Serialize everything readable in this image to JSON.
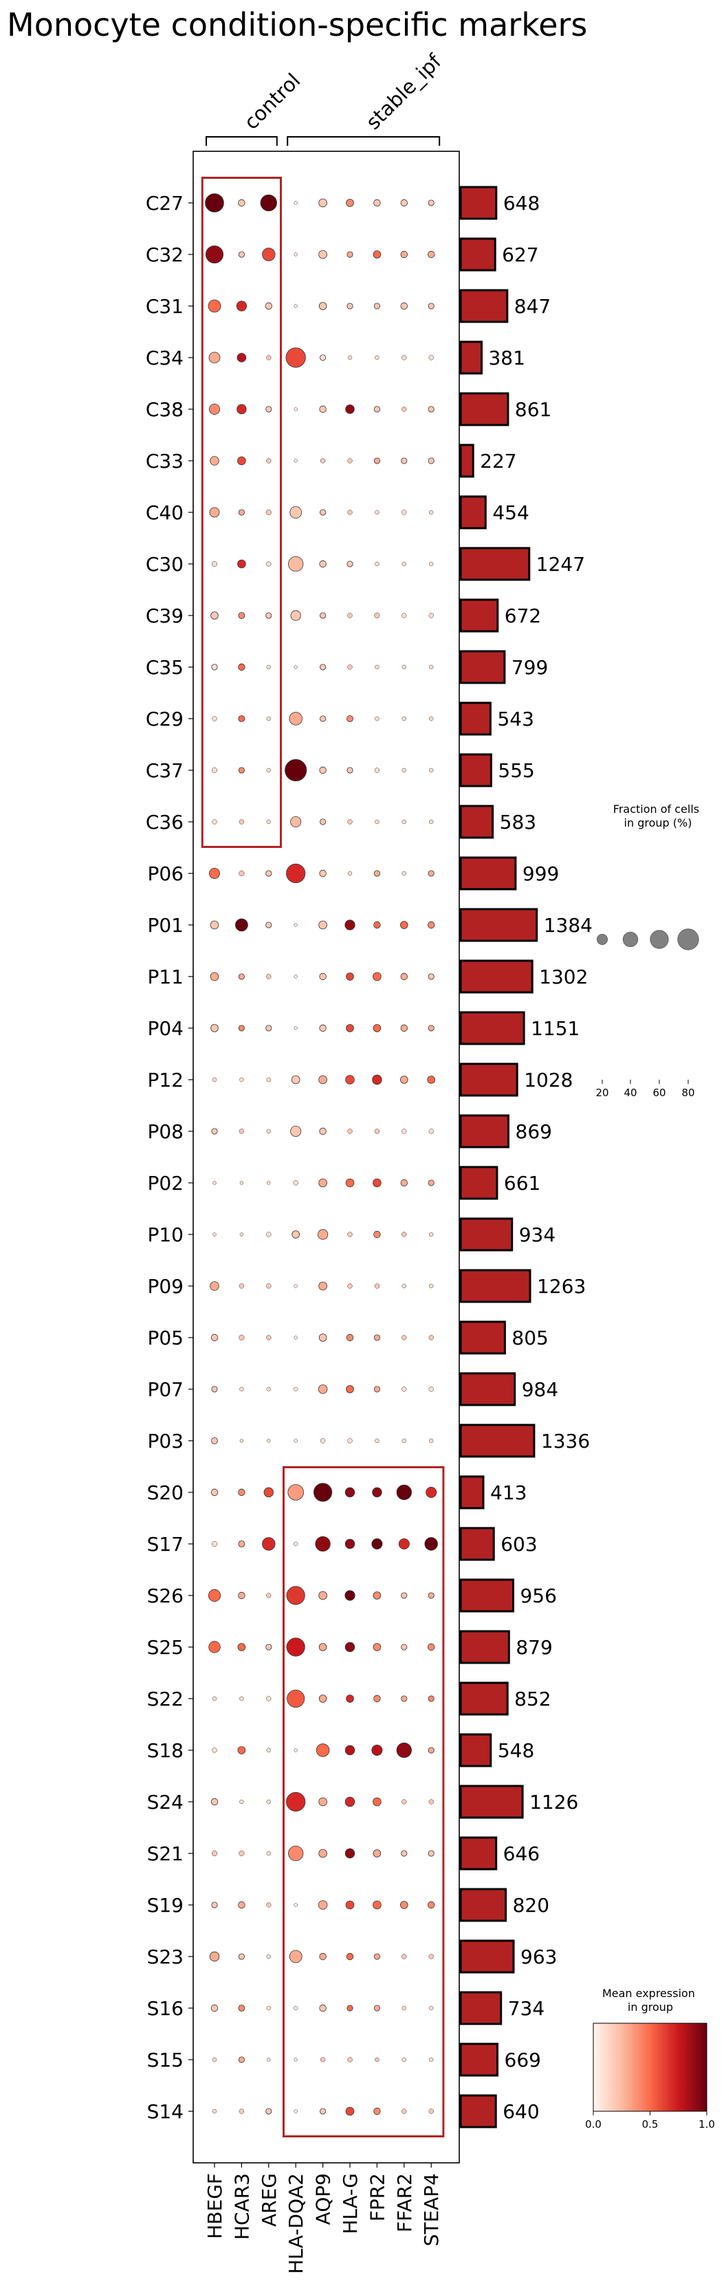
{
  "chart_data": {
    "type": "dotplot",
    "title": "Monocyte condition-specific markers",
    "var_groups": [
      {
        "label": "control",
        "genes": [
          "HBEGF",
          "HCAR3",
          "AREG"
        ]
      },
      {
        "label": "stable_ipf",
        "genes": [
          "HLA-DQA2",
          "AQP9",
          "HLA-G",
          "FPR2",
          "FFAR2",
          "STEAP4"
        ]
      }
    ],
    "genes": [
      "HBEGF",
      "HCAR3",
      "AREG",
      "HLA-DQA2",
      "AQP9",
      "HLA-G",
      "FPR2",
      "FFAR2",
      "STEAP4"
    ],
    "groups": [
      "C27",
      "C32",
      "C31",
      "C34",
      "C38",
      "C33",
      "C40",
      "C30",
      "C39",
      "C35",
      "C29",
      "C37",
      "C36",
      "P06",
      "P01",
      "P11",
      "P04",
      "P12",
      "P08",
      "P02",
      "P10",
      "P09",
      "P05",
      "P07",
      "P03",
      "S20",
      "S17",
      "S26",
      "S25",
      "S22",
      "S18",
      "S24",
      "S21",
      "S19",
      "S23",
      "S16",
      "S15",
      "S14"
    ],
    "cell_counts": [
      648,
      627,
      847,
      381,
      861,
      227,
      454,
      1247,
      672,
      799,
      543,
      555,
      583,
      999,
      1384,
      1302,
      1151,
      1028,
      869,
      661,
      934,
      1263,
      805,
      984,
      1336,
      413,
      603,
      956,
      879,
      852,
      548,
      1126,
      646,
      820,
      963,
      734,
      669,
      640
    ],
    "fraction_pct": [
      [
        62,
        8,
        48,
        2,
        12,
        10,
        8,
        8,
        6
      ],
      [
        55,
        6,
        30,
        2,
        12,
        6,
        10,
        8,
        8
      ],
      [
        28,
        18,
        8,
        2,
        10,
        6,
        6,
        8,
        6
      ],
      [
        22,
        14,
        4,
        70,
        6,
        3,
        3,
        4,
        4
      ],
      [
        20,
        16,
        6,
        2,
        8,
        14,
        6,
        4,
        6
      ],
      [
        14,
        12,
        4,
        2,
        4,
        4,
        6,
        6,
        6
      ],
      [
        17,
        6,
        5,
        25,
        6,
        4,
        3,
        4,
        3
      ],
      [
        5,
        12,
        4,
        40,
        8,
        6,
        3,
        3,
        3
      ],
      [
        10,
        7,
        6,
        18,
        6,
        4,
        5,
        4,
        4
      ],
      [
        6,
        8,
        3,
        2,
        6,
        4,
        3,
        3,
        3
      ],
      [
        4,
        7,
        3,
        30,
        6,
        7,
        3,
        3,
        3
      ],
      [
        5,
        6,
        3,
        85,
        8,
        6,
        4,
        3,
        3
      ],
      [
        4,
        4,
        3,
        20,
        6,
        4,
        3,
        3,
        3
      ],
      [
        20,
        5,
        6,
        65,
        8,
        3,
        6,
        3,
        6
      ],
      [
        12,
        28,
        6,
        2,
        12,
        18,
        8,
        10,
        8
      ],
      [
        12,
        6,
        4,
        2,
        8,
        10,
        12,
        8,
        6
      ],
      [
        10,
        6,
        6,
        2,
        8,
        10,
        10,
        8,
        6
      ],
      [
        3,
        3,
        3,
        12,
        12,
        14,
        16,
        10,
        10
      ],
      [
        6,
        4,
        3,
        20,
        8,
        4,
        4,
        4,
        4
      ],
      [
        2,
        2,
        2,
        4,
        12,
        12,
        12,
        8,
        6
      ],
      [
        2,
        2,
        4,
        10,
        18,
        4,
        8,
        4,
        3
      ],
      [
        14,
        4,
        4,
        2,
        12,
        4,
        4,
        3,
        3
      ],
      [
        8,
        5,
        4,
        2,
        10,
        8,
        6,
        4,
        4
      ],
      [
        6,
        3,
        3,
        3,
        14,
        10,
        6,
        4,
        4
      ],
      [
        7,
        2,
        2,
        2,
        4,
        4,
        3,
        3,
        3
      ],
      [
        8,
        8,
        16,
        45,
        60,
        16,
        16,
        40,
        20
      ],
      [
        5,
        7,
        30,
        3,
        40,
        16,
        20,
        20,
        30
      ],
      [
        26,
        8,
        4,
        60,
        12,
        18,
        10,
        6,
        6
      ],
      [
        24,
        10,
        6,
        60,
        10,
        16,
        10,
        6,
        8
      ],
      [
        3,
        3,
        4,
        55,
        10,
        10,
        8,
        6,
        6
      ],
      [
        4,
        10,
        3,
        2,
        30,
        16,
        20,
        40,
        6
      ],
      [
        8,
        3,
        3,
        65,
        12,
        16,
        12,
        4,
        4
      ],
      [
        5,
        5,
        3,
        40,
        12,
        16,
        10,
        6,
        6
      ],
      [
        6,
        8,
        4,
        2,
        14,
        12,
        12,
        10,
        8
      ],
      [
        16,
        6,
        3,
        28,
        8,
        8,
        6,
        4,
        4
      ],
      [
        8,
        7,
        3,
        3,
        8,
        6,
        6,
        3,
        3
      ],
      [
        3,
        6,
        2,
        2,
        4,
        4,
        3,
        3,
        3
      ],
      [
        3,
        4,
        6,
        2,
        6,
        12,
        8,
        4,
        4
      ]
    ],
    "mean_expr": [
      [
        1.0,
        0.2,
        1.0,
        0.05,
        0.2,
        0.4,
        0.2,
        0.2,
        0.2
      ],
      [
        0.9,
        0.2,
        0.6,
        0.05,
        0.2,
        0.3,
        0.5,
        0.3,
        0.3
      ],
      [
        0.5,
        0.7,
        0.2,
        0.05,
        0.2,
        0.2,
        0.2,
        0.2,
        0.2
      ],
      [
        0.3,
        0.8,
        0.2,
        0.6,
        0.1,
        0.1,
        0.1,
        0.1,
        0.1
      ],
      [
        0.4,
        0.7,
        0.2,
        0.05,
        0.2,
        0.9,
        0.2,
        0.2,
        0.2
      ],
      [
        0.3,
        0.6,
        0.2,
        0.05,
        0.2,
        0.2,
        0.3,
        0.2,
        0.2
      ],
      [
        0.3,
        0.3,
        0.2,
        0.2,
        0.2,
        0.2,
        0.1,
        0.1,
        0.1
      ],
      [
        0.1,
        0.7,
        0.1,
        0.25,
        0.2,
        0.2,
        0.1,
        0.1,
        0.1
      ],
      [
        0.2,
        0.4,
        0.2,
        0.2,
        0.2,
        0.2,
        0.2,
        0.1,
        0.1
      ],
      [
        0.1,
        0.5,
        0.1,
        0.05,
        0.2,
        0.2,
        0.1,
        0.1,
        0.1
      ],
      [
        0.1,
        0.5,
        0.1,
        0.3,
        0.2,
        0.4,
        0.1,
        0.1,
        0.1
      ],
      [
        0.1,
        0.4,
        0.1,
        1.0,
        0.2,
        0.2,
        0.1,
        0.1,
        0.1
      ],
      [
        0.1,
        0.2,
        0.1,
        0.25,
        0.2,
        0.2,
        0.1,
        0.1,
        0.1
      ],
      [
        0.5,
        0.2,
        0.2,
        0.7,
        0.2,
        0.1,
        0.3,
        0.1,
        0.3
      ],
      [
        0.2,
        1.0,
        0.2,
        0.05,
        0.2,
        0.9,
        0.5,
        0.5,
        0.4
      ],
      [
        0.3,
        0.3,
        0.2,
        0.05,
        0.2,
        0.6,
        0.5,
        0.3,
        0.2
      ],
      [
        0.2,
        0.4,
        0.2,
        0.05,
        0.2,
        0.6,
        0.5,
        0.3,
        0.3
      ],
      [
        0.1,
        0.1,
        0.1,
        0.2,
        0.3,
        0.6,
        0.7,
        0.3,
        0.5
      ],
      [
        0.2,
        0.2,
        0.1,
        0.2,
        0.2,
        0.2,
        0.2,
        0.1,
        0.1
      ],
      [
        0.1,
        0.1,
        0.1,
        0.1,
        0.3,
        0.5,
        0.6,
        0.3,
        0.3
      ],
      [
        0.1,
        0.1,
        0.1,
        0.2,
        0.3,
        0.2,
        0.4,
        0.2,
        0.1
      ],
      [
        0.3,
        0.2,
        0.2,
        0.05,
        0.3,
        0.2,
        0.2,
        0.1,
        0.1
      ],
      [
        0.2,
        0.2,
        0.2,
        0.05,
        0.2,
        0.4,
        0.3,
        0.2,
        0.2
      ],
      [
        0.2,
        0.1,
        0.1,
        0.05,
        0.3,
        0.5,
        0.3,
        0.1,
        0.1
      ],
      [
        0.2,
        0.1,
        0.1,
        0.05,
        0.1,
        0.1,
        0.1,
        0.1,
        0.1
      ],
      [
        0.2,
        0.4,
        0.6,
        0.35,
        1.0,
        0.9,
        0.9,
        1.0,
        0.7
      ],
      [
        0.1,
        0.3,
        0.7,
        0.05,
        0.9,
        0.9,
        1.0,
        0.7,
        1.0
      ],
      [
        0.5,
        0.3,
        0.2,
        0.65,
        0.3,
        1.0,
        0.4,
        0.2,
        0.3
      ],
      [
        0.5,
        0.5,
        0.2,
        0.75,
        0.3,
        0.9,
        0.4,
        0.2,
        0.4
      ],
      [
        0.1,
        0.1,
        0.1,
        0.55,
        0.3,
        0.7,
        0.4,
        0.3,
        0.4
      ],
      [
        0.1,
        0.5,
        0.1,
        0.05,
        0.5,
        0.8,
        0.8,
        0.9,
        0.3
      ],
      [
        0.2,
        0.1,
        0.1,
        0.7,
        0.3,
        0.7,
        0.5,
        0.2,
        0.2
      ],
      [
        0.2,
        0.2,
        0.1,
        0.4,
        0.3,
        0.9,
        0.3,
        0.2,
        0.2
      ],
      [
        0.2,
        0.3,
        0.2,
        0.05,
        0.3,
        0.6,
        0.5,
        0.4,
        0.4
      ],
      [
        0.3,
        0.2,
        0.1,
        0.3,
        0.3,
        0.5,
        0.3,
        0.2,
        0.2
      ],
      [
        0.2,
        0.4,
        0.1,
        0.05,
        0.2,
        0.5,
        0.3,
        0.1,
        0.1
      ],
      [
        0.1,
        0.3,
        0.1,
        0.05,
        0.2,
        0.2,
        0.2,
        0.1,
        0.1
      ],
      [
        0.1,
        0.2,
        0.2,
        0.05,
        0.2,
        0.6,
        0.4,
        0.2,
        0.2
      ]
    ],
    "highlight_boxes": [
      {
        "rows": [
          "C27",
          "C36"
        ],
        "cols": [
          "HBEGF",
          "AREG"
        ]
      },
      {
        "rows": [
          "S20",
          "S14"
        ],
        "cols": [
          "HLA-DQA2",
          "STEAP4"
        ]
      }
    ],
    "count_bars": {
      "xlim": [
        0,
        1500
      ]
    },
    "size_legend": {
      "title": "Fraction of cells\nin group (%)",
      "ticks": [
        20,
        40,
        60,
        80
      ]
    },
    "color_legend": {
      "title": "Mean expression\nin group",
      "ticks": [
        0.0,
        0.5,
        1.0
      ],
      "tick_labels": [
        "0.0",
        "0.5",
        "1.0"
      ],
      "colormap": "Reds"
    },
    "colors": {
      "box": "#b22222",
      "bar": "#b22222",
      "bar_edge": "#000000",
      "axis": "#000000",
      "legend_dot": "#808080"
    }
  }
}
